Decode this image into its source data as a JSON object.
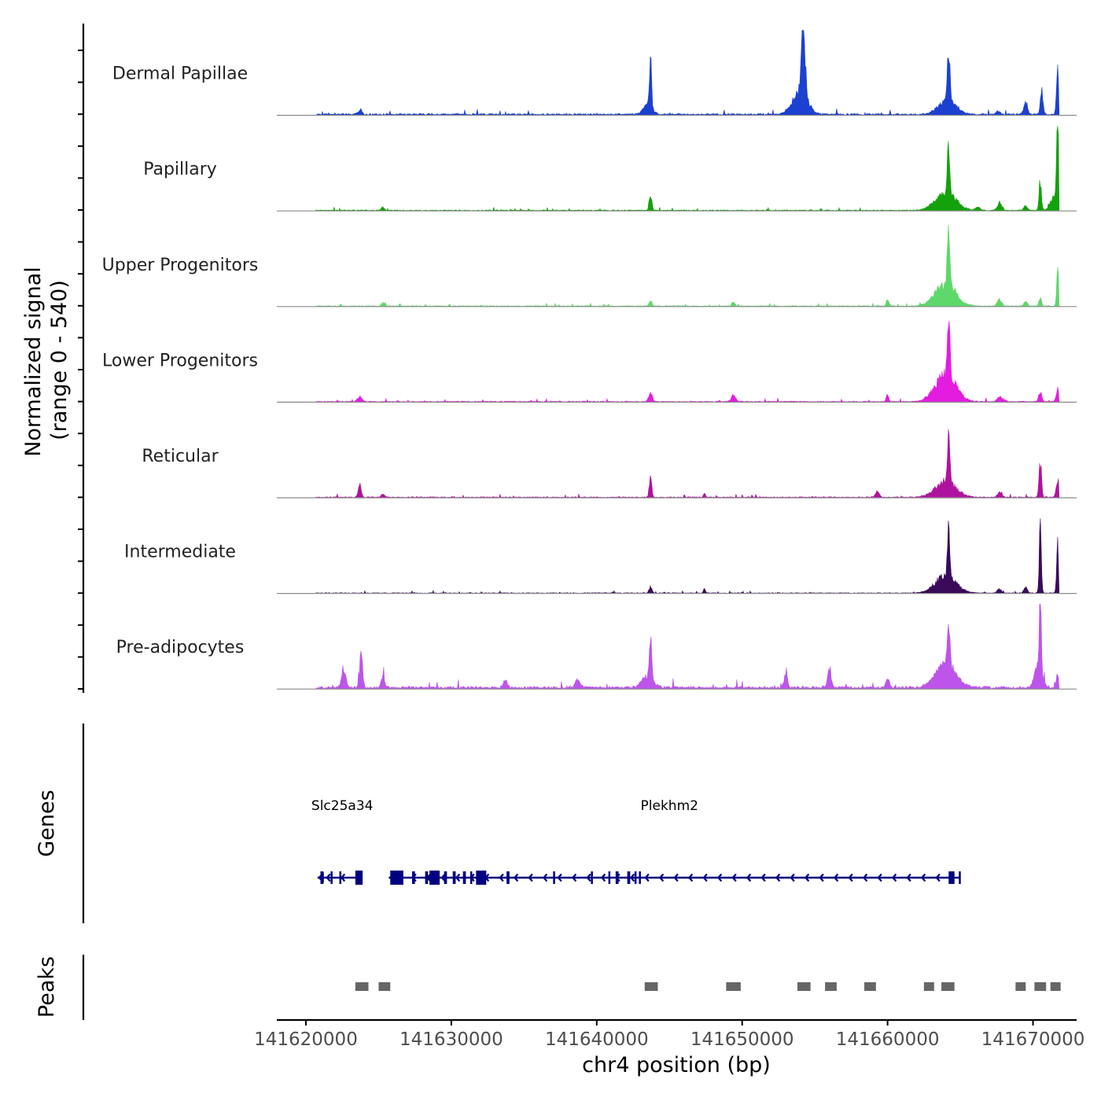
{
  "chart_data": {
    "type": "area",
    "title": "",
    "ylabel": "Normalized signal",
    "ylabel_range": "(range 0 - 540)",
    "ylim": [
      0,
      540
    ],
    "xlabel": "chr4 position (bp)",
    "xlim": [
      141618000,
      141673000
    ],
    "xticks": [
      141620000,
      141630000,
      141640000,
      141650000,
      141660000,
      141670000
    ],
    "xtick_labels": [
      "141620000",
      "141630000",
      "141640000",
      "141650000",
      "141660000",
      "141670000"
    ],
    "signal_range": [
      141620700,
      141671800
    ],
    "series": [
      {
        "name": "Dermal Papillae",
        "color": "#1c40d0",
        "baseline": 12,
        "peaks": [
          [
            141623700,
            25,
            150
          ],
          [
            141643700,
            300,
            70
          ],
          [
            141643500,
            60,
            300
          ],
          [
            141654200,
            520,
            120
          ],
          [
            141654000,
            150,
            500
          ],
          [
            141664200,
            320,
            90
          ],
          [
            141664100,
            90,
            600
          ],
          [
            141667600,
            20,
            150
          ],
          [
            141669500,
            80,
            120
          ],
          [
            141670600,
            150,
            90
          ],
          [
            141671700,
            300,
            80
          ]
        ]
      },
      {
        "name": "Papillary",
        "color": "#13a20b",
        "baseline": 7,
        "peaks": [
          [
            141625300,
            22,
            100
          ],
          [
            141643700,
            95,
            90
          ],
          [
            141664200,
            300,
            90
          ],
          [
            141664000,
            110,
            700
          ],
          [
            141666200,
            20,
            150
          ],
          [
            141667700,
            50,
            150
          ],
          [
            141669500,
            30,
            120
          ],
          [
            141670500,
            190,
            80
          ],
          [
            141671700,
            430,
            70
          ],
          [
            141671600,
            120,
            300
          ]
        ]
      },
      {
        "name": "Upper Progenitors",
        "color": "#5ed86a",
        "baseline": 6,
        "peaks": [
          [
            141625300,
            20,
            100
          ],
          [
            141643700,
            35,
            90
          ],
          [
            141649400,
            25,
            100
          ],
          [
            141660000,
            45,
            80
          ],
          [
            141664200,
            350,
            90
          ],
          [
            141664000,
            140,
            700
          ],
          [
            141667700,
            40,
            150
          ],
          [
            141669500,
            30,
            120
          ],
          [
            141670500,
            60,
            80
          ],
          [
            141671700,
            220,
            70
          ]
        ]
      },
      {
        "name": "Lower Progenitors",
        "color": "#e31ce0",
        "baseline": 7,
        "peaks": [
          [
            141623700,
            30,
            150
          ],
          [
            141643700,
            60,
            120
          ],
          [
            141649400,
            40,
            150
          ],
          [
            141660000,
            50,
            80
          ],
          [
            141664200,
            400,
            90
          ],
          [
            141664000,
            170,
            700
          ],
          [
            141667700,
            30,
            150
          ],
          [
            141670500,
            60,
            100
          ],
          [
            141671700,
            80,
            100
          ]
        ]
      },
      {
        "name": "Reticular",
        "color": "#af139d",
        "baseline": 7,
        "peaks": [
          [
            141623700,
            75,
            100
          ],
          [
            141625300,
            20,
            100
          ],
          [
            141643700,
            130,
            80
          ],
          [
            141647400,
            30,
            60
          ],
          [
            141659300,
            40,
            120
          ],
          [
            141664200,
            300,
            80
          ],
          [
            141664000,
            100,
            700
          ],
          [
            141667700,
            30,
            150
          ],
          [
            141670500,
            230,
            80
          ],
          [
            141671700,
            120,
            100
          ]
        ]
      },
      {
        "name": "Intermediate",
        "color": "#3a0a5a",
        "baseline": 5,
        "peaks": [
          [
            141643700,
            40,
            100
          ],
          [
            141647400,
            35,
            60
          ],
          [
            141664200,
            330,
            80
          ],
          [
            141664000,
            110,
            700
          ],
          [
            141667700,
            25,
            150
          ],
          [
            141669500,
            40,
            120
          ],
          [
            141670500,
            400,
            70
          ],
          [
            141671700,
            300,
            70
          ]
        ]
      },
      {
        "name": "Pre-adipocytes",
        "color": "#bd55ea",
        "baseline": 18,
        "peaks": [
          [
            141622600,
            130,
            140
          ],
          [
            141623800,
            210,
            100
          ],
          [
            141625300,
            90,
            100
          ],
          [
            141633700,
            40,
            150
          ],
          [
            141638700,
            60,
            150
          ],
          [
            141643700,
            230,
            80
          ],
          [
            141643500,
            70,
            400
          ],
          [
            141653000,
            80,
            120
          ],
          [
            141656000,
            110,
            120
          ],
          [
            141660000,
            60,
            120
          ],
          [
            141664200,
            280,
            90
          ],
          [
            141664000,
            150,
            700
          ],
          [
            141670500,
            540,
            60
          ],
          [
            141670400,
            150,
            250
          ],
          [
            141671700,
            80,
            100
          ]
        ]
      }
    ],
    "genes_track": {
      "label": "Genes",
      "genes": [
        {
          "name": "Slc25a34",
          "label_pos": 141622500,
          "start": 141620800,
          "end": 141623900,
          "strand": "-",
          "exons": [
            [
              141621000,
              141621200
            ],
            [
              141621700,
              141621800
            ],
            [
              141622300,
              141622400
            ],
            [
              141623400,
              141623900
            ]
          ]
        },
        {
          "name": "Plekhm2",
          "label_pos": 141645000,
          "start": 141625700,
          "end": 141665000,
          "strand": "-",
          "exons": [
            [
              141625800,
              141626700
            ],
            [
              141627300,
              141627500
            ],
            [
              141628200,
              141628400
            ],
            [
              141628500,
              141629200
            ],
            [
              141629500,
              141629700
            ],
            [
              141630100,
              141630300
            ],
            [
              141630800,
              141631000
            ],
            [
              141631300,
              141631400
            ],
            [
              141631700,
              141632400
            ],
            [
              141633800,
              141634000
            ],
            [
              141637000,
              141637100
            ],
            [
              141639600,
              141639700
            ],
            [
              141640800,
              141640900
            ],
            [
              141641300,
              141641500
            ],
            [
              141642100,
              141642300
            ],
            [
              141642600,
              141642700
            ],
            [
              141642900,
              141643000
            ],
            [
              141664200,
              141664600
            ],
            [
              141664900,
              141665000
            ]
          ]
        }
      ]
    },
    "peaks_track": {
      "label": "Peaks",
      "peaks": [
        [
          141623400,
          141624300
        ],
        [
          141625000,
          141625800
        ],
        [
          141643300,
          141644200
        ],
        [
          141648900,
          141649900
        ],
        [
          141653800,
          141654700
        ],
        [
          141655700,
          141656500
        ],
        [
          141658400,
          141659200
        ],
        [
          141662500,
          141663200
        ],
        [
          141663700,
          141664600
        ],
        [
          141668800,
          141669500
        ],
        [
          141670100,
          141670900
        ],
        [
          141671200,
          141671900
        ]
      ]
    }
  }
}
